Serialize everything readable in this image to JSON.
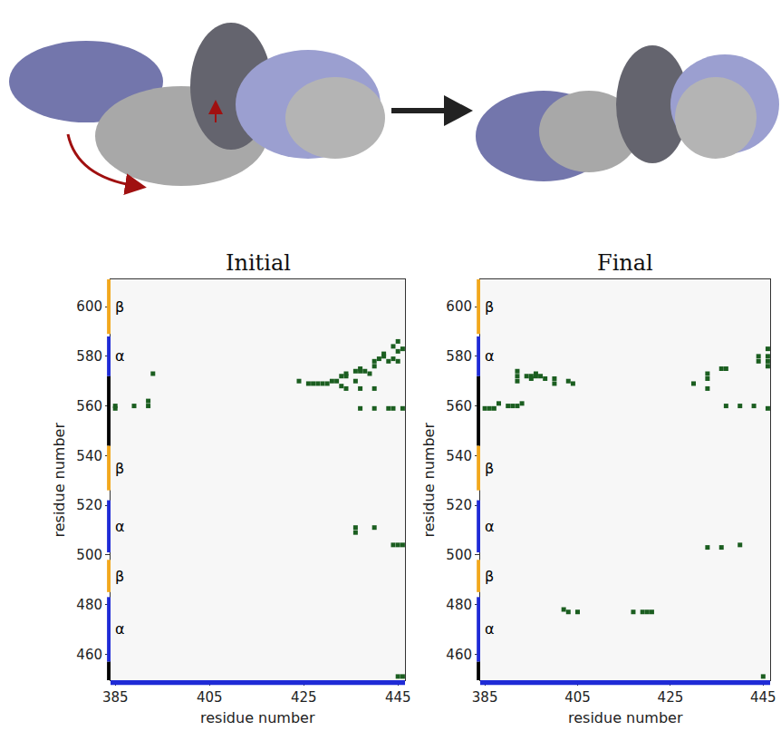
{
  "chart_data": [
    {
      "type": "scatter",
      "marker": "square",
      "title": "Initial",
      "x_label": "residue number",
      "y_label": "residue number",
      "xlim": [
        384,
        446.5
      ],
      "ylim": [
        449.5,
        611
      ],
      "xticks": [
        385,
        405,
        425,
        445
      ],
      "yticks": [
        460,
        480,
        500,
        520,
        540,
        560,
        580,
        600
      ],
      "grid": false,
      "color": "#1b5e20",
      "x": [
        385,
        385,
        389,
        392,
        392,
        393,
        424,
        426,
        427,
        428,
        429,
        430,
        431,
        432,
        433,
        433,
        434,
        434,
        434,
        436,
        437,
        437,
        437,
        438,
        439,
        440,
        440,
        441,
        442,
        442,
        443,
        444,
        445,
        445,
        446,
        444,
        445,
        436,
        440,
        437,
        440,
        443,
        444,
        446,
        436,
        436,
        440,
        444,
        445,
        446,
        445,
        446
      ],
      "y": [
        559,
        560,
        560,
        560,
        562,
        573,
        570,
        569,
        569,
        569,
        569,
        569,
        570,
        570,
        568,
        572,
        572,
        573,
        567,
        570,
        574,
        575,
        567,
        574,
        573,
        576,
        578,
        579,
        580,
        581,
        578,
        584,
        582,
        586,
        583,
        579,
        578,
        574,
        567,
        559,
        559,
        559,
        559,
        559,
        509,
        511,
        511,
        504,
        504,
        504,
        451,
        451
      ],
      "secondary_structure": {
        "y": [
          {
            "start": 449.5,
            "end": 457,
            "color": "#000000"
          },
          {
            "start": 457,
            "end": 483,
            "color": "#1f2bd6",
            "label": "α"
          },
          {
            "start": 485,
            "end": 498,
            "color": "#f2a81d",
            "label": "β"
          },
          {
            "start": 501,
            "end": 522,
            "color": "#1f2bd6",
            "label": "α"
          },
          {
            "start": 526,
            "end": 544,
            "color": "#f2a81d",
            "label": "β"
          },
          {
            "start": 544,
            "end": 572,
            "color": "#000000"
          },
          {
            "start": 572,
            "end": 588,
            "color": "#1f2bd6",
            "label": "α"
          },
          {
            "start": 589,
            "end": 611,
            "color": "#f2a81d",
            "label": "β"
          }
        ],
        "x": [
          {
            "start": 384,
            "end": 446.5,
            "color": "#1f2bd6"
          }
        ]
      }
    },
    {
      "type": "scatter",
      "marker": "square",
      "title": "Final",
      "x_label": "residue number",
      "y_label": "residue number",
      "xlim": [
        384,
        446.5
      ],
      "ylim": [
        449.5,
        611
      ],
      "xticks": [
        385,
        405,
        425,
        445
      ],
      "yticks": [
        460,
        480,
        500,
        520,
        540,
        560,
        580,
        600
      ],
      "grid": false,
      "color": "#1b5e20",
      "x": [
        385,
        386,
        387,
        388,
        390,
        391,
        392,
        393,
        392,
        392,
        392,
        394,
        395,
        396,
        396,
        397,
        398,
        400,
        400,
        403,
        404,
        395,
        430,
        433,
        433,
        433,
        436,
        437,
        437,
        440,
        443,
        446,
        444,
        446,
        446,
        446,
        446,
        444,
        402,
        403,
        405,
        417,
        419,
        420,
        421,
        433,
        436,
        440,
        445
      ],
      "y": [
        559,
        559,
        559,
        561,
        560,
        560,
        560,
        561,
        570,
        572,
        574,
        572,
        572,
        572,
        573,
        572,
        571,
        571,
        569,
        570,
        569,
        571,
        569,
        573,
        571,
        567,
        575,
        575,
        560,
        560,
        560,
        559,
        580,
        580,
        578,
        583,
        576,
        578,
        478,
        477,
        477,
        477,
        477,
        477,
        477,
        503,
        503,
        504,
        451
      ],
      "secondary_structure": {
        "y": [
          {
            "start": 449.5,
            "end": 457,
            "color": "#000000"
          },
          {
            "start": 457,
            "end": 483,
            "color": "#1f2bd6",
            "label": "α"
          },
          {
            "start": 485,
            "end": 498,
            "color": "#f2a81d",
            "label": "β"
          },
          {
            "start": 501,
            "end": 522,
            "color": "#1f2bd6",
            "label": "α"
          },
          {
            "start": 526,
            "end": 544,
            "color": "#f2a81d",
            "label": "β"
          },
          {
            "start": 544,
            "end": 572,
            "color": "#000000"
          },
          {
            "start": 572,
            "end": 588,
            "color": "#1f2bd6",
            "label": "α"
          },
          {
            "start": 589,
            "end": 611,
            "color": "#f2a81d",
            "label": "β"
          }
        ],
        "x": [
          {
            "start": 384,
            "end": 446.5,
            "color": "#1f2bd6"
          }
        ]
      }
    }
  ]
}
